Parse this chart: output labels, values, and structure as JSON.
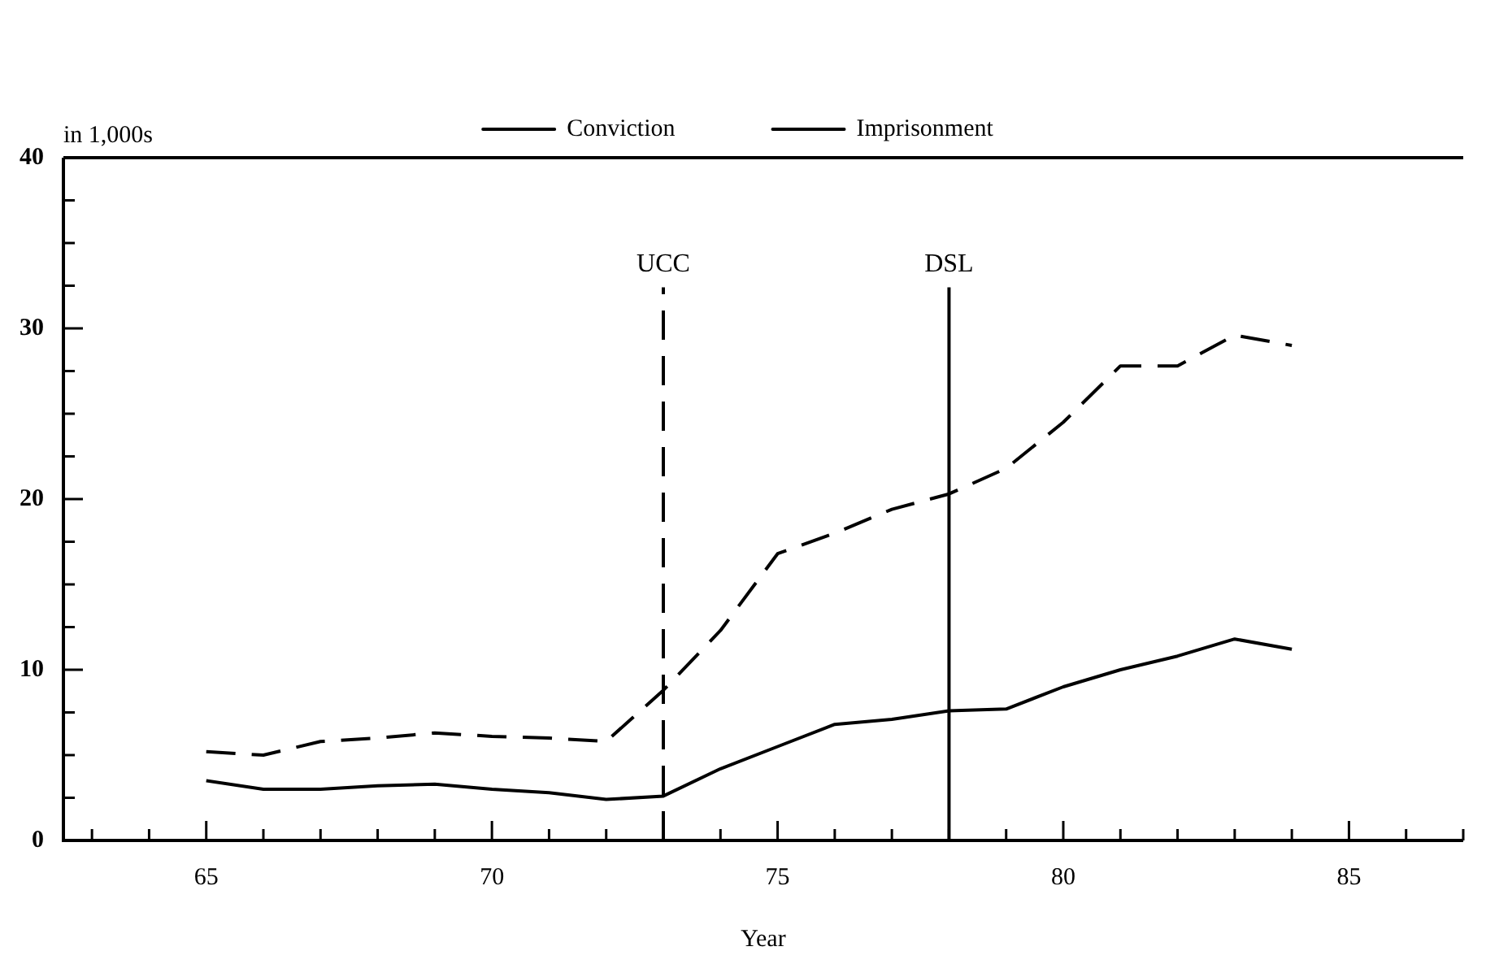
{
  "chart_data": {
    "type": "line",
    "xlabel": "Year",
    "ylabel": "in 1,000s",
    "x": [
      65,
      66,
      67,
      68,
      69,
      70,
      71,
      72,
      73,
      74,
      75,
      76,
      77,
      78,
      79,
      80,
      81,
      82,
      83,
      84
    ],
    "series": [
      {
        "name": "Conviction",
        "color": "#000000",
        "line_style": "dashed",
        "values": [
          5.2,
          5.0,
          5.8,
          6.0,
          6.3,
          6.1,
          6.0,
          5.8,
          8.8,
          12.3,
          16.8,
          18.0,
          19.4,
          20.3,
          21.8,
          24.5,
          27.8,
          27.8,
          29.6,
          29.0
        ]
      },
      {
        "name": "Imprisonment",
        "color": "#000000",
        "line_style": "solid",
        "values": [
          3.5,
          3.0,
          3.0,
          3.2,
          3.3,
          3.0,
          2.8,
          2.4,
          2.6,
          4.2,
          5.5,
          6.8,
          7.1,
          7.6,
          7.7,
          9.0,
          10.0,
          10.8,
          11.8,
          11.2
        ]
      }
    ],
    "xlim": [
      62.5,
      87
    ],
    "xticks": [
      {
        "value": 63,
        "label": null
      },
      {
        "value": 64,
        "label": null
      },
      65,
      {
        "value": 66,
        "label": null
      },
      {
        "value": 67,
        "label": null
      },
      {
        "value": 68,
        "label": null
      },
      {
        "value": 69,
        "label": null
      },
      70,
      {
        "value": 71,
        "label": null
      },
      {
        "value": 72,
        "label": null
      },
      {
        "value": 73,
        "label": null
      },
      {
        "value": 74,
        "label": null
      },
      75,
      {
        "value": 76,
        "label": null
      },
      {
        "value": 77,
        "label": null
      },
      {
        "value": 78,
        "label": null
      },
      {
        "value": 79,
        "label": null
      },
      80,
      {
        "value": 81,
        "label": null
      },
      {
        "value": 82,
        "label": null
      },
      {
        "value": 83,
        "label": null
      },
      {
        "value": 84,
        "label": null
      },
      85,
      {
        "value": 86,
        "label": null
      },
      {
        "value": 87,
        "label": null
      }
    ],
    "ylim": [
      0,
      40
    ],
    "yticks": [
      0,
      {
        "value": 2.5,
        "label": null
      },
      {
        "value": 5,
        "label": null
      },
      {
        "value": 7.5,
        "label": null
      },
      10,
      {
        "value": 12.5,
        "label": null
      },
      {
        "value": 15,
        "label": null
      },
      {
        "value": 17.5,
        "label": null
      },
      20,
      {
        "value": 22.5,
        "label": null
      },
      {
        "value": 25,
        "label": null
      },
      {
        "value": 27.5,
        "label": null
      },
      30,
      {
        "value": 32.5,
        "label": null
      },
      {
        "value": 35,
        "label": null
      },
      {
        "value": 37.5,
        "label": null
      },
      40
    ],
    "ref_lines": [
      {
        "axis": "x",
        "value": 73,
        "label": "UCC",
        "line_style": "dashed",
        "color": "#000000"
      },
      {
        "axis": "x",
        "value": 78,
        "label": "DSL",
        "line_style": "solid",
        "color": "#000000"
      }
    ],
    "legend": "top",
    "grid": false,
    "marker": "none"
  }
}
